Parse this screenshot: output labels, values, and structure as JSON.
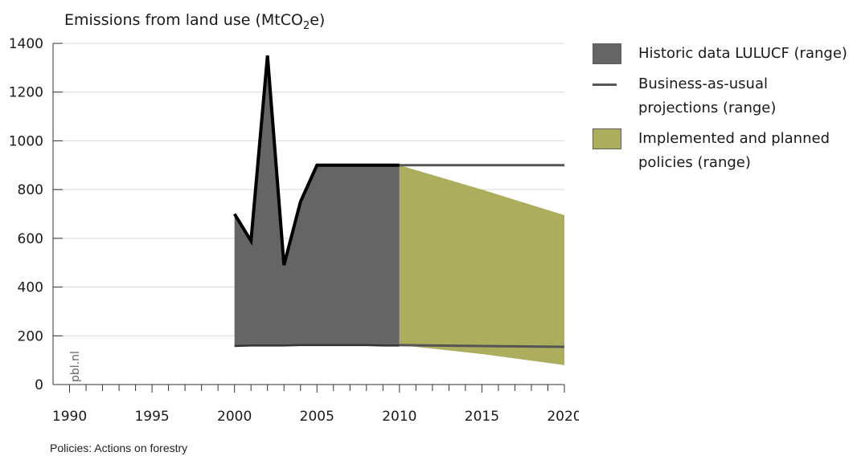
{
  "chart_data": {
    "type": "area",
    "title": "",
    "ylabel": "Emissions from land use (MtCO2e)",
    "ylabel_parts": {
      "pre": "Emissions from land use (MtCO",
      "sub": "2",
      "post": "e)"
    },
    "xlabel": "",
    "xlim": [
      1989,
      2020
    ],
    "ylim": [
      0,
      1400
    ],
    "x_ticks": [
      1990,
      1995,
      2000,
      2005,
      2010,
      2015,
      2020
    ],
    "y_ticks": [
      0,
      200,
      400,
      600,
      800,
      1000,
      1200,
      1400
    ],
    "grid": true,
    "legend_position": "right",
    "watermark": "pbl.nl",
    "series": [
      {
        "name": "Historic data LULUCF (range)",
        "color": "#656565",
        "kind": "range-area",
        "x": [
          2000,
          2001,
          2002,
          2003,
          2004,
          2005,
          2006,
          2007,
          2008,
          2009,
          2010
        ],
        "upper": [
          700,
          590,
          1350,
          490,
          750,
          900,
          900,
          900,
          900,
          900,
          900
        ],
        "lower": [
          158,
          160,
          160,
          160,
          162,
          162,
          162,
          162,
          162,
          160,
          160
        ]
      },
      {
        "name": "Business-as-usual projections (range)",
        "color": "#555555",
        "kind": "range-lines",
        "x": [
          2010,
          2015,
          2020
        ],
        "upper": [
          900,
          900,
          900
        ],
        "lower": [
          162,
          158,
          155
        ]
      },
      {
        "name": "Implemented and planned policies (range)",
        "color": "#adad5e",
        "kind": "range-area",
        "x": [
          2010,
          2015,
          2020
        ],
        "upper": [
          900,
          800,
          695
        ],
        "lower": [
          162,
          125,
          80
        ]
      }
    ]
  },
  "legend": [
    {
      "label": "Historic data LULUCF (range)",
      "color": "#656565",
      "type": "box"
    },
    {
      "label": "Business-as-usual projections (range)",
      "color": "#555555",
      "type": "line"
    },
    {
      "label": "Implemented and planned policies (range)",
      "color": "#adad5e",
      "type": "box"
    }
  ],
  "footer": "Policies: Actions on forestry"
}
